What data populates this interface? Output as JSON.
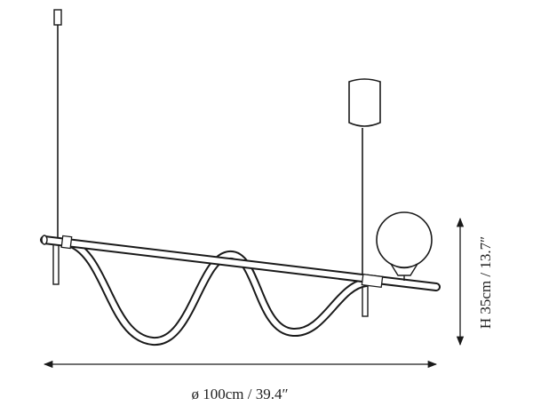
{
  "dimensions": {
    "width": {
      "label": "ø 100cm / 39.4″"
    },
    "height": {
      "label": "H 35cm / 13.7″"
    }
  }
}
